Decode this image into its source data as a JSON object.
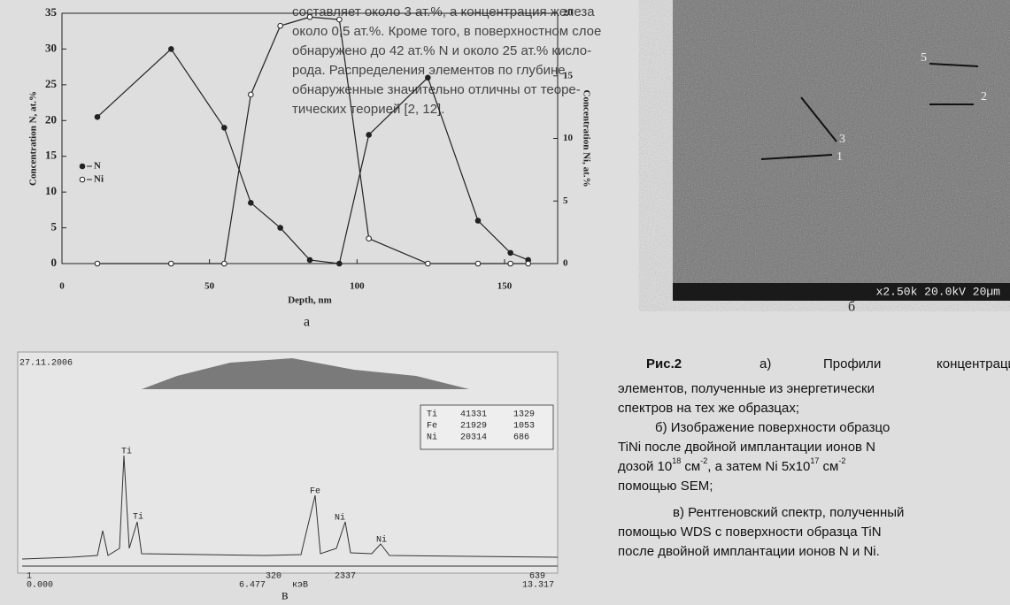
{
  "chart_data": {
    "type": "line",
    "xlabel": "Depth, nm",
    "ylabel": "Concentration N, at.%",
    "y2label": "Concentration Ni, at.%",
    "x": [
      12,
      37,
      55,
      64,
      74,
      84,
      94,
      104,
      124,
      141,
      152,
      158
    ],
    "series": [
      {
        "name": "N",
        "color": "#222",
        "values": [
          20.5,
          30,
          19,
          8.5,
          5,
          0.5,
          0,
          18,
          26,
          6,
          1.5,
          0.5
        ]
      },
      {
        "name": "Ni",
        "color": "#222",
        "axis": "y2",
        "values": [
          0,
          0,
          0,
          13.5,
          19,
          19.7,
          19.5,
          2,
          0,
          0,
          0,
          0
        ]
      }
    ],
    "xlim": [
      0,
      168
    ],
    "xticks": [
      0,
      50,
      100,
      150
    ],
    "ylim": [
      0,
      35
    ],
    "yticks": [
      0,
      5,
      10,
      15,
      20,
      25,
      30,
      35
    ],
    "y2lim": [
      0,
      20
    ],
    "y2ticks": [
      0,
      5,
      10,
      15,
      20
    ]
  },
  "panel_labels": [
    "а",
    "б",
    "в"
  ],
  "body_text": [
    "составляет около 3 ат.%, а концентрация железа",
    "около 0,5 ат.%. Кроме того, в поверхностном слое",
    "обнаружено до 42 ат.% N и около 25 ат.% кисло-",
    "рода. Распределения элементов по глубине",
    "обнаруженные значительно отличны от теоре-",
    "тических теорией [2, 12]."
  ],
  "sem": {
    "info": "x2.50k  20.0kV  20µm",
    "markers": [
      "5",
      "2",
      "3",
      "1"
    ]
  },
  "spectrum": {
    "date": "27.11.2006",
    "table": [
      [
        "Ti",
        "41331",
        "1329"
      ],
      [
        "Fe",
        "21929",
        "1053"
      ],
      [
        "Ni",
        "20314",
        "686"
      ]
    ],
    "peaks": [
      "Ti",
      "Ti",
      "Fe",
      "Ni",
      "Ni"
    ],
    "axis_left": [
      "1",
      "0.000"
    ],
    "axis_mid": [
      "320",
      "6.477",
      "кэВ",
      "2337"
    ],
    "axis_right": [
      "639",
      "13.317"
    ]
  },
  "caption": {
    "line1": [
      "Рис.2",
      "а)",
      "Профили",
      "концентраци"
    ],
    "lines_a": [
      "элементов, полученные из энергетически",
      "спектров на тех же образцах;"
    ],
    "line_b1": "б) Изображение поверхности образцо",
    "line_b2": "TiNi после двойной имплантации ионов N",
    "dose": [
      "дозой 10",
      "18",
      " см",
      "-2",
      ", а затем Ni 5x10",
      "17",
      " см",
      "-2"
    ],
    "line_b4": "помощью SEM;",
    "lines_c": [
      "в) Рентгеновский спектр, полученный",
      "помощью WDS с поверхности образца TiN",
      "после двойной имплантации ионов N и Ni."
    ]
  }
}
